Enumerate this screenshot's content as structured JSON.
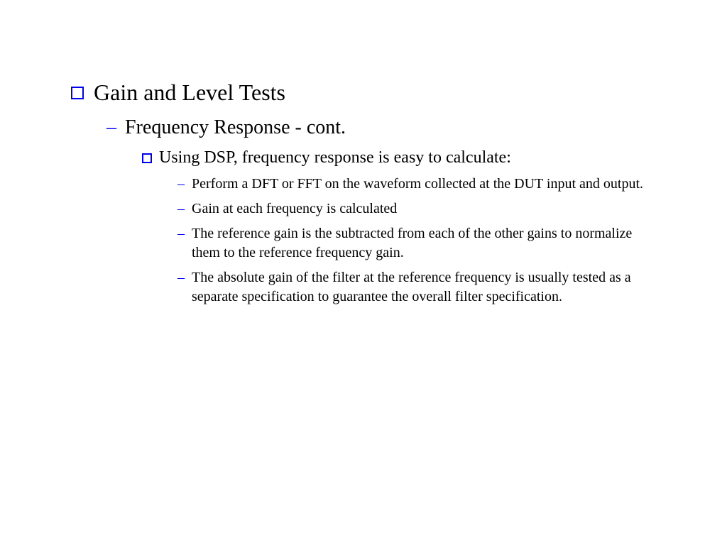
{
  "slide": {
    "level1": "Gain and Level Tests",
    "level2": "Frequency Response - cont.",
    "level3": "Using DSP, frequency response is easy to calculate:",
    "level4": [
      "Perform a DFT or FFT on the waveform collected at the DUT input and output.",
      "Gain at each frequency is calculated",
      "The reference gain is the subtracted from each of the other gains to normalize them to the reference frequency gain.",
      "The absolute gain of the filter at the reference frequency is usually tested as a separate specification to guarantee the overall filter specification."
    ]
  },
  "style": {
    "bullet_color": "#0000ee",
    "text_color": "#000000",
    "background_color": "#ffffff",
    "font_family": "Times New Roman",
    "level1_fontsize": 32,
    "level2_fontsize": 28,
    "level3_fontsize": 24,
    "level4_fontsize": 20
  }
}
